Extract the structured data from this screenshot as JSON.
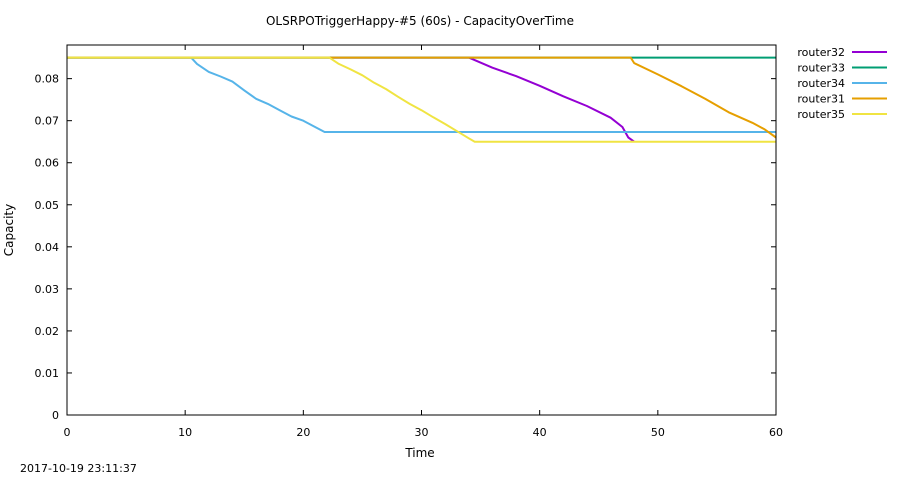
{
  "footer": {
    "timestamp": "2017-10-19 23:11:37"
  },
  "chart_data": {
    "type": "line",
    "title": "OLSRPOTriggerHappy-#5 (60s) - CapacityOverTime",
    "xlabel": "Time",
    "ylabel": "Capacity",
    "xlim": [
      0,
      60
    ],
    "ylim": [
      0,
      0.088
    ],
    "xticks": [
      0,
      10,
      20,
      30,
      40,
      50,
      60
    ],
    "xtick_labels": [
      "0",
      "10",
      "20",
      "30",
      "40",
      "50",
      "60"
    ],
    "yticks": [
      0,
      0.01,
      0.02,
      0.03,
      0.04,
      0.05,
      0.06,
      0.07,
      0.08
    ],
    "ytick_labels": [
      "0",
      "0.01",
      "0.02",
      "0.03",
      "0.04",
      "0.05",
      "0.06",
      "0.07",
      "0.08"
    ],
    "grid": false,
    "legend_position": "outside-right",
    "series": [
      {
        "name": "router32",
        "color": "#9400d3",
        "x": [
          0,
          34,
          36,
          38,
          40,
          42,
          44,
          46,
          47,
          47.5,
          48
        ],
        "y": [
          0.085,
          0.085,
          0.0826,
          0.0806,
          0.0783,
          0.0758,
          0.0735,
          0.0707,
          0.0685,
          0.066,
          0.065
        ]
      },
      {
        "name": "router33",
        "color": "#009e73",
        "x": [
          0,
          60
        ],
        "y": [
          0.085,
          0.085
        ]
      },
      {
        "name": "router34",
        "color": "#56b4e9",
        "x": [
          0,
          10.5,
          11,
          12,
          13,
          14,
          15,
          16,
          17,
          18,
          19,
          20,
          21,
          21.8,
          60
        ],
        "y": [
          0.085,
          0.085,
          0.0835,
          0.0816,
          0.0805,
          0.0793,
          0.0772,
          0.0752,
          0.074,
          0.0725,
          0.071,
          0.07,
          0.0685,
          0.0673,
          0.0673
        ]
      },
      {
        "name": "router31",
        "color": "#e69f00",
        "x": [
          0,
          47.7,
          48,
          50,
          52,
          54,
          56,
          58,
          59,
          60
        ],
        "y": [
          0.085,
          0.085,
          0.0837,
          0.081,
          0.0782,
          0.0752,
          0.072,
          0.0695,
          0.068,
          0.066
        ]
      },
      {
        "name": "router35",
        "color": "#f0e442",
        "x": [
          0,
          22.2,
          23,
          24,
          25,
          26,
          27,
          28,
          29,
          30,
          31,
          32,
          33,
          34,
          34.5,
          60
        ],
        "y": [
          0.085,
          0.085,
          0.0835,
          0.0822,
          0.0808,
          0.079,
          0.0775,
          0.0757,
          0.074,
          0.0725,
          0.0708,
          0.0692,
          0.0675,
          0.0658,
          0.065,
          0.065
        ]
      }
    ]
  }
}
